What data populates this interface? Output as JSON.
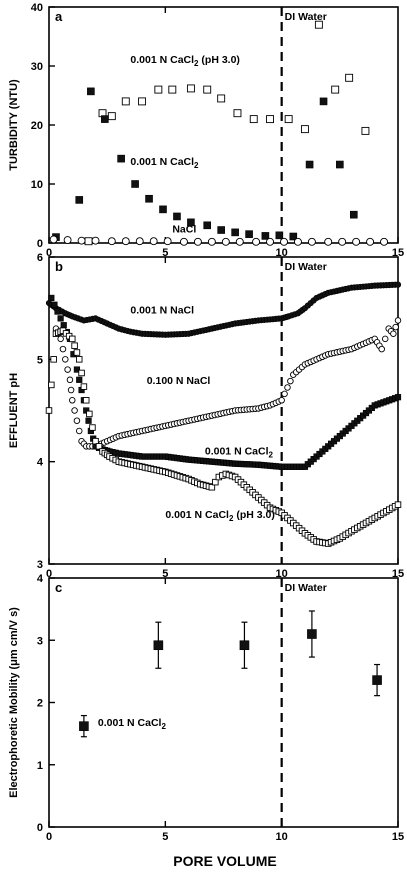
{
  "chart_data": [
    {
      "panel_label": "a",
      "type": "scatter",
      "ylabel": "TURBIDITY (NTU)",
      "xlim": [
        0,
        15
      ],
      "ylim": [
        0,
        40
      ],
      "yticks": [
        "0",
        "10",
        "20",
        "30",
        "40"
      ],
      "xticks": [
        "0",
        "5",
        "10",
        "15"
      ],
      "marker_line": {
        "x": 10,
        "label": "DI Water"
      },
      "series": [
        {
          "name": "0.001 N CaCl2 (pH 3.0)",
          "marker": "open-square",
          "x": [
            1.7,
            2.3,
            2.7,
            3.3,
            4.0,
            4.7,
            5.3,
            6.1,
            6.8,
            7.4,
            8.1,
            8.8,
            9.5,
            10.3,
            11.0,
            11.6,
            12.3,
            12.9,
            13.6
          ],
          "y": [
            0.3,
            22,
            21.5,
            24,
            24,
            26,
            26,
            26.2,
            26,
            24.5,
            22,
            21,
            21,
            21,
            19.3,
            37,
            26,
            28,
            19
          ]
        },
        {
          "name": "0.001 N CaCl2",
          "marker": "filled-square",
          "x": [
            0.3,
            1.3,
            1.8,
            2.4,
            3.1,
            3.7,
            4.3,
            4.9,
            5.5,
            6.1,
            6.8,
            7.4,
            8.0,
            8.6,
            9.3,
            9.9,
            10.5,
            11.2,
            11.8,
            12.5,
            13.1
          ],
          "y": [
            1,
            7.3,
            25.7,
            21,
            14.3,
            10,
            7.5,
            5.7,
            4.5,
            3.5,
            3,
            2.2,
            1.8,
            1.5,
            1.2,
            1.3,
            1.1,
            13.3,
            24,
            13.3,
            4.8
          ]
        },
        {
          "name": "NaCl",
          "marker": "open-circle",
          "x": [
            0.2,
            0.8,
            1.4,
            2.0,
            2.7,
            3.3,
            3.9,
            4.5,
            5.1,
            5.8,
            6.4,
            7.0,
            7.6,
            8.2,
            8.9,
            9.5,
            10.1,
            10.7,
            11.3,
            12.0,
            12.6,
            13.2,
            13.8,
            14.4
          ],
          "y": [
            0.6,
            0.5,
            0.4,
            0.4,
            0.3,
            0.3,
            0.3,
            0.3,
            0.3,
            0.2,
            0.2,
            0.2,
            0.2,
            0.2,
            0.2,
            0.2,
            0.2,
            0.2,
            0.2,
            0.2,
            0.2,
            0.2,
            0.2,
            0.2
          ]
        }
      ]
    },
    {
      "panel_label": "b",
      "type": "line",
      "ylabel": "EFFLUENT pH",
      "xlim": [
        0,
        15
      ],
      "ylim": [
        3,
        6
      ],
      "yticks": [
        "3",
        "4",
        "5",
        "6"
      ],
      "xticks": [
        "0",
        "5",
        "10",
        "15"
      ],
      "marker_line": {
        "x": 10,
        "label": "DI Water"
      },
      "series": [
        {
          "name": "0.001 N NaCl",
          "marker": "filled-circle",
          "x": [
            0,
            0.3,
            0.7,
            1.0,
            1.5,
            2.0,
            2.5,
            3.0,
            3.5,
            4.0,
            5.0,
            6.0,
            7.0,
            8.0,
            9.0,
            10.0,
            10.3,
            10.7,
            11.0,
            11.5,
            12.0,
            13.0,
            14.0,
            15.0
          ],
          "y": [
            5.55,
            5.5,
            5.45,
            5.42,
            5.38,
            5.4,
            5.35,
            5.3,
            5.27,
            5.25,
            5.24,
            5.25,
            5.3,
            5.35,
            5.38,
            5.4,
            5.42,
            5.45,
            5.5,
            5.6,
            5.65,
            5.7,
            5.72,
            5.73
          ]
        },
        {
          "name": "0.100 N NaCl",
          "marker": "open-circle",
          "x": [
            0.3,
            0.5,
            0.7,
            0.9,
            1.0,
            1.2,
            1.4,
            1.6,
            2.0,
            2.5,
            3.0,
            4.0,
            5.0,
            6.0,
            7.0,
            8.0,
            9.0,
            9.5,
            10.0,
            10.5,
            11.0,
            11.5,
            12.0,
            13.0,
            14.0,
            14.3,
            14.6,
            14.8,
            15.0
          ],
          "y": [
            5.3,
            5.2,
            5.0,
            4.8,
            4.6,
            4.4,
            4.2,
            4.15,
            4.15,
            4.2,
            4.25,
            4.3,
            4.35,
            4.4,
            4.45,
            4.5,
            4.52,
            4.55,
            4.6,
            4.85,
            4.95,
            5.0,
            5.05,
            5.1,
            5.2,
            5.1,
            5.3,
            5.25,
            5.38
          ]
        },
        {
          "name": "0.001 N CaCl2",
          "marker": "filled-square",
          "x": [
            0.1,
            0.5,
            0.9,
            1.2,
            1.5,
            1.8,
            2.0,
            2.3,
            2.6,
            3.0,
            4.0,
            5.0,
            6.0,
            7.0,
            8.0,
            9.0,
            10.0,
            11.0,
            11.5,
            12.0,
            12.5,
            13.0,
            14.0,
            15.0
          ],
          "y": [
            5.6,
            5.4,
            5.2,
            4.9,
            4.6,
            4.3,
            4.15,
            4.12,
            4.1,
            4.08,
            4.05,
            4.05,
            4.02,
            4.0,
            3.98,
            3.97,
            3.95,
            3.95,
            4.05,
            4.15,
            4.25,
            4.35,
            4.55,
            4.63
          ]
        },
        {
          "name": "0.001 N CaCl2 (pH 3.0)",
          "marker": "open-square",
          "x": [
            0,
            0.3,
            0.6,
            1.0,
            1.3,
            1.6,
            2.0,
            2.3,
            2.6,
            3.0,
            4.0,
            5.0,
            6.0,
            6.5,
            7.0,
            7.3,
            7.6,
            8.0,
            8.5,
            9.0,
            9.5,
            10.0,
            10.5,
            11.0,
            11.5,
            12.0,
            12.5,
            13.0,
            14.0,
            15.0
          ],
          "y": [
            4.5,
            5.25,
            5.28,
            5.2,
            5.0,
            4.6,
            4.2,
            4.1,
            4.05,
            4.0,
            3.95,
            3.9,
            3.83,
            3.78,
            3.75,
            3.85,
            3.88,
            3.85,
            3.75,
            3.65,
            3.55,
            3.5,
            3.4,
            3.3,
            3.22,
            3.2,
            3.25,
            3.32,
            3.45,
            3.58
          ]
        }
      ]
    },
    {
      "panel_label": "c",
      "type": "scatter",
      "ylabel": "Electrophoretic Mobility (μm cm/V s)",
      "xlabel": "PORE VOLUME",
      "xlim": [
        0,
        15
      ],
      "ylim": [
        0,
        4
      ],
      "yticks": [
        "0",
        "1",
        "2",
        "3",
        "4"
      ],
      "xticks": [
        "0",
        "5",
        "10",
        "15"
      ],
      "marker_line": {
        "x": 10,
        "label": "DI Water"
      },
      "series": [
        {
          "name": "0.001 N CaCl2",
          "marker": "filled-square",
          "x": [
            1.5,
            4.7,
            8.4,
            11.3,
            14.1
          ],
          "y": [
            1.62,
            2.92,
            2.92,
            3.1,
            2.36
          ],
          "error": [
            0.17,
            0.37,
            0.37,
            0.37,
            0.25
          ]
        }
      ]
    }
  ],
  "annotations": {
    "a": [
      {
        "text": "0.001 N CaCl2 (pH 3.0)",
        "x": 3.5,
        "y": 30.5
      },
      {
        "text": "0.001 N CaCl2",
        "x": 3.5,
        "y": 13.2
      },
      {
        "text": "NaCl",
        "x": 5.3,
        "y": 1.8
      }
    ],
    "b": [
      {
        "text": "0.001 N NaCl",
        "x": 3.5,
        "y": 5.45
      },
      {
        "text": "0.100 N NaCl",
        "x": 4.2,
        "y": 4.76
      },
      {
        "text": "0.001 N CaCl2",
        "x": 6.7,
        "y": 4.07
      },
      {
        "text": "0.001 N CaCl2 (pH 3.0)",
        "x": 5.0,
        "y": 3.45
      }
    ],
    "c": [
      {
        "text": "0.001 N CaCl2",
        "x": 2.1,
        "y": 1.62
      }
    ]
  }
}
